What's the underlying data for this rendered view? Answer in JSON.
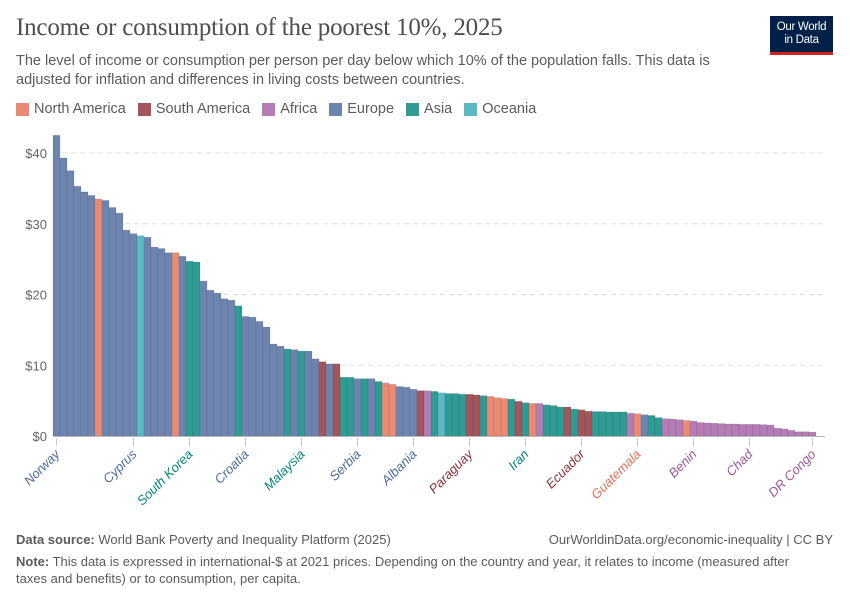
{
  "header": {
    "title": "Income or consumption of the poorest 10%, 2025",
    "subtitle": "The level of income or consumption per person per day below which 10% of the population falls. This data is adjusted for inflation and differences in living costs between countries.",
    "logo_line1": "Our World",
    "logo_line2": "in Data"
  },
  "legend": [
    {
      "label": "North America",
      "color": "#EA8A73"
    },
    {
      "label": "South America",
      "color": "#A2555B"
    },
    {
      "label": "Africa",
      "color": "#B57BB4"
    },
    {
      "label": "Europe",
      "color": "#6D84AE"
    },
    {
      "label": "Asia",
      "color": "#2F9B93"
    },
    {
      "label": "Oceania",
      "color": "#5BB9C6"
    }
  ],
  "label_colors": {
    "North America": "#E56E5A",
    "South America": "#883039",
    "Africa": "#A2559C",
    "Europe": "#4C6A9C",
    "Asia": "#00847E",
    "Oceania": "#3A9BB0"
  },
  "chart_data": {
    "type": "bar",
    "title": "Income or consumption of the poorest 10%, 2025",
    "xlabel": "",
    "ylabel": "",
    "ylim": [
      0,
      42
    ],
    "yticks": [
      0,
      10,
      20,
      30,
      40
    ],
    "ytick_labels": [
      "$0",
      "$10",
      "$20",
      "$30",
      "$40"
    ],
    "grid": "horizontal dashed",
    "legend_position": "top",
    "bars": [
      [
        "Norway",
        42.5,
        "Europe"
      ],
      [
        "",
        39.3,
        "Europe"
      ],
      [
        "",
        37.5,
        "Europe"
      ],
      [
        "",
        35.3,
        "Europe"
      ],
      [
        "",
        34.5,
        "Europe"
      ],
      [
        "",
        34.0,
        "Europe"
      ],
      [
        "",
        33.5,
        "North America"
      ],
      [
        "",
        33.3,
        "Europe"
      ],
      [
        "",
        32.3,
        "Europe"
      ],
      [
        "",
        31.5,
        "Europe"
      ],
      [
        "",
        29.1,
        "Europe"
      ],
      [
        "Cyprus",
        28.6,
        "Europe"
      ],
      [
        "",
        28.3,
        "Oceania"
      ],
      [
        "",
        28.1,
        "Europe"
      ],
      [
        "",
        26.7,
        "Europe"
      ],
      [
        "",
        26.5,
        "Europe"
      ],
      [
        "",
        25.9,
        "Europe"
      ],
      [
        "",
        25.9,
        "North America"
      ],
      [
        "",
        25.4,
        "Europe"
      ],
      [
        "South Korea",
        24.7,
        "Asia"
      ],
      [
        "",
        24.6,
        "Asia"
      ],
      [
        "",
        21.9,
        "Europe"
      ],
      [
        "",
        20.6,
        "Europe"
      ],
      [
        "",
        20.2,
        "Europe"
      ],
      [
        "",
        19.4,
        "Europe"
      ],
      [
        "",
        19.2,
        "Europe"
      ],
      [
        "",
        18.4,
        "Asia"
      ],
      [
        "Croatia",
        16.9,
        "Europe"
      ],
      [
        "",
        16.8,
        "Europe"
      ],
      [
        "",
        16.2,
        "Europe"
      ],
      [
        "",
        15.4,
        "Europe"
      ],
      [
        "",
        13.0,
        "Europe"
      ],
      [
        "",
        12.7,
        "Europe"
      ],
      [
        "",
        12.3,
        "Asia"
      ],
      [
        "",
        12.2,
        "Europe"
      ],
      [
        "Malaysia",
        12.0,
        "Asia"
      ],
      [
        "",
        12.0,
        "Europe"
      ],
      [
        "",
        10.9,
        "Europe"
      ],
      [
        "",
        10.5,
        "South America"
      ],
      [
        "",
        10.2,
        "Europe"
      ],
      [
        "",
        10.2,
        "South America"
      ],
      [
        "",
        8.3,
        "Asia"
      ],
      [
        "",
        8.3,
        "Asia"
      ],
      [
        "Serbia",
        8.1,
        "Europe"
      ],
      [
        "",
        8.1,
        "Asia"
      ],
      [
        "",
        8.1,
        "Europe"
      ],
      [
        "",
        7.7,
        "Asia"
      ],
      [
        "",
        7.5,
        "North America"
      ],
      [
        "",
        7.3,
        "North America"
      ],
      [
        "",
        7.0,
        "Europe"
      ],
      [
        "",
        6.9,
        "Europe"
      ],
      [
        "Albania",
        6.6,
        "Europe"
      ],
      [
        "",
        6.4,
        "South America"
      ],
      [
        "",
        6.4,
        "Africa"
      ],
      [
        "",
        6.3,
        "Asia"
      ],
      [
        "",
        6.1,
        "Oceania"
      ],
      [
        "",
        6.0,
        "Asia"
      ],
      [
        "",
        6.0,
        "Asia"
      ],
      [
        "",
        5.9,
        "Asia"
      ],
      [
        "Paraguay",
        5.9,
        "South America"
      ],
      [
        "",
        5.8,
        "South America"
      ],
      [
        "",
        5.7,
        "Asia"
      ],
      [
        "",
        5.6,
        "North America"
      ],
      [
        "",
        5.4,
        "North America"
      ],
      [
        "",
        5.3,
        "North America"
      ],
      [
        "",
        5.2,
        "Asia"
      ],
      [
        "",
        4.9,
        "South America"
      ],
      [
        "Iran",
        4.7,
        "Asia"
      ],
      [
        "",
        4.6,
        "North America"
      ],
      [
        "",
        4.6,
        "Africa"
      ],
      [
        "",
        4.4,
        "Asia"
      ],
      [
        "",
        4.3,
        "Asia"
      ],
      [
        "",
        4.1,
        "Asia"
      ],
      [
        "",
        4.1,
        "South America"
      ],
      [
        "",
        3.8,
        "Asia"
      ],
      [
        "Ecuador",
        3.7,
        "South America"
      ],
      [
        "",
        3.5,
        "South America"
      ],
      [
        "",
        3.45,
        "Asia"
      ],
      [
        "",
        3.45,
        "Asia"
      ],
      [
        "",
        3.4,
        "Asia"
      ],
      [
        "",
        3.4,
        "Asia"
      ],
      [
        "",
        3.4,
        "Asia"
      ],
      [
        "",
        3.2,
        "Africa"
      ],
      [
        "Guatemala",
        3.15,
        "North America"
      ],
      [
        "",
        3.0,
        "Europe"
      ],
      [
        "",
        2.9,
        "Asia"
      ],
      [
        "",
        2.6,
        "Asia"
      ],
      [
        "",
        2.45,
        "Africa"
      ],
      [
        "",
        2.4,
        "Africa"
      ],
      [
        "",
        2.3,
        "Africa"
      ],
      [
        "",
        2.2,
        "North America"
      ],
      [
        "Benin",
        2.1,
        "Africa"
      ],
      [
        "",
        1.9,
        "Africa"
      ],
      [
        "",
        1.85,
        "Africa"
      ],
      [
        "",
        1.8,
        "Africa"
      ],
      [
        "",
        1.75,
        "Africa"
      ],
      [
        "",
        1.7,
        "Africa"
      ],
      [
        "",
        1.7,
        "Africa"
      ],
      [
        "",
        1.65,
        "Africa"
      ],
      [
        "Chad",
        1.65,
        "Africa"
      ],
      [
        "",
        1.65,
        "Africa"
      ],
      [
        "",
        1.6,
        "Africa"
      ],
      [
        "",
        1.55,
        "Africa"
      ],
      [
        "",
        1.1,
        "Africa"
      ],
      [
        "",
        1.0,
        "Africa"
      ],
      [
        "",
        0.8,
        "Africa"
      ],
      [
        "",
        0.6,
        "Africa"
      ],
      [
        "",
        0.6,
        "Africa"
      ],
      [
        "DR Congo",
        0.55,
        "Africa"
      ]
    ]
  },
  "footer": {
    "source_label": "Data source:",
    "source_text": "World Bank Poverty and Inequality Platform (2025)",
    "url": "OurWorldinData.org/economic-inequality | CC BY",
    "note_label": "Note:",
    "note_text": "This data is expressed in international-$ at 2021 prices. Depending on the country and year, it relates to income (measured after taxes and benefits) or to consumption, per capita."
  }
}
